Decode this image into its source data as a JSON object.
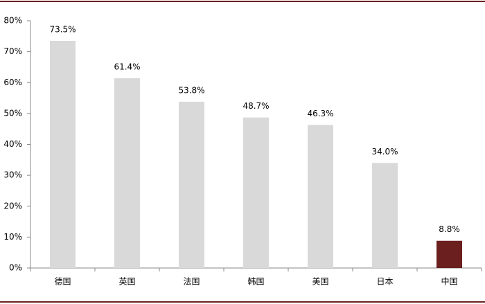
{
  "chart_data": {
    "type": "bar",
    "categories": [
      "德国",
      "英国",
      "法国",
      "韩国",
      "美国",
      "日本",
      "中国"
    ],
    "values": [
      73.5,
      61.4,
      53.8,
      48.7,
      46.3,
      34.0,
      8.8
    ],
    "value_labels": [
      "73.5%",
      "61.4%",
      "53.8%",
      "48.7%",
      "46.3%",
      "34.0%",
      "8.8%"
    ],
    "colors": [
      "#d9d9d9",
      "#d9d9d9",
      "#d9d9d9",
      "#d9d9d9",
      "#d9d9d9",
      "#d9d9d9",
      "#6b1f1f"
    ],
    "ylim": [
      0,
      80
    ],
    "yticks": [
      {
        "value": 0,
        "label": "0%"
      },
      {
        "value": 10,
        "label": "10%"
      },
      {
        "value": 20,
        "label": "20%"
      },
      {
        "value": 30,
        "label": "30%"
      },
      {
        "value": 40,
        "label": "40%"
      },
      {
        "value": 50,
        "label": "50%"
      },
      {
        "value": 60,
        "label": "60%"
      },
      {
        "value": 70,
        "label": "70%"
      },
      {
        "value": 80,
        "label": "80%"
      }
    ],
    "grid": false
  }
}
